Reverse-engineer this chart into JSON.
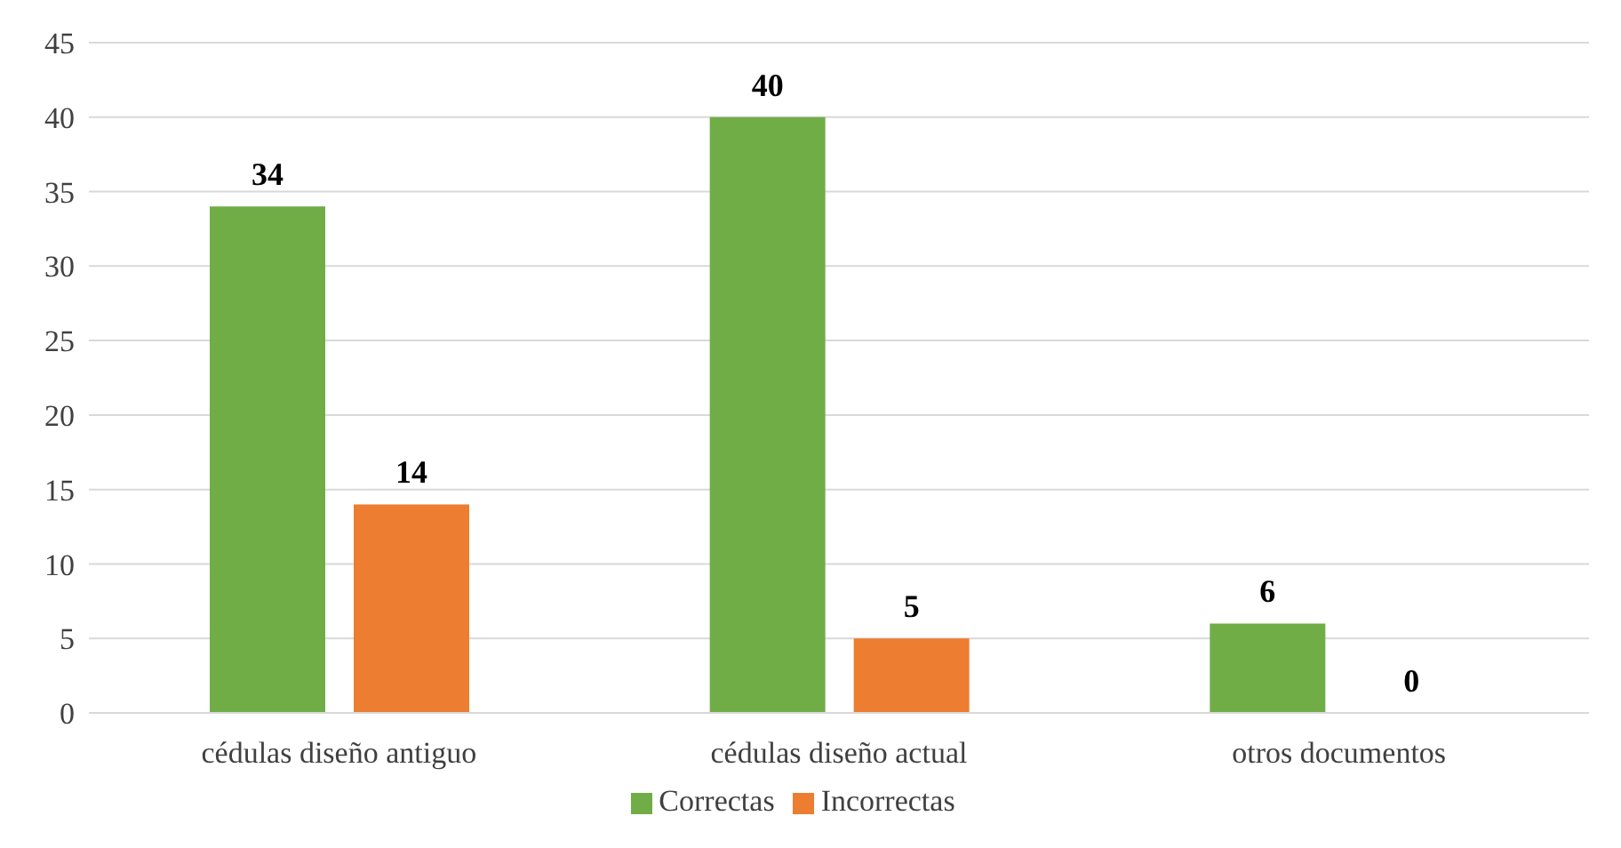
{
  "chart_data": {
    "type": "bar",
    "categories": [
      "cédulas diseño antiguo",
      "cédulas diseño actual",
      "otros documentos"
    ],
    "series": [
      {
        "name": "Correctas",
        "color": "#70ad47",
        "values": [
          34,
          40,
          6
        ]
      },
      {
        "name": "Incorrectas",
        "color": "#ed7d31",
        "values": [
          14,
          5,
          0
        ]
      }
    ],
    "ylim": [
      0,
      45
    ],
    "yticks": [
      0,
      5,
      10,
      15,
      20,
      25,
      30,
      35,
      40,
      45
    ],
    "grid": "y",
    "legend": "bottom",
    "data_labels": true
  }
}
